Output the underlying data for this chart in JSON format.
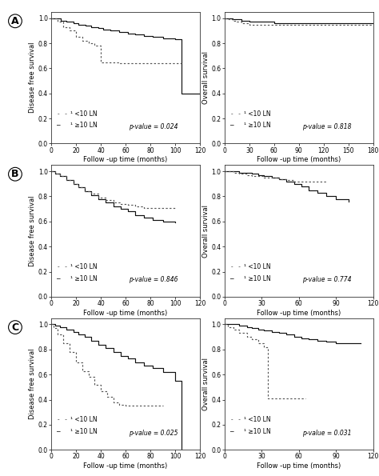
{
  "panels": [
    {
      "label": "A",
      "left": {
        "ylabel": "Disease free survival",
        "xlabel": "Follow -up time (months)",
        "xlim": [
          0,
          120
        ],
        "xticks": [
          0,
          20,
          40,
          60,
          80,
          100,
          120
        ],
        "ylim": [
          0.0,
          1.05
        ],
        "yticks": [
          0.0,
          0.2,
          0.4,
          0.6,
          0.8,
          1.0
        ],
        "pvalue": "p-value = 0.024",
        "solid_x": [
          0,
          8,
          12,
          18,
          22,
          28,
          32,
          38,
          42,
          48,
          55,
          62,
          68,
          75,
          82,
          90,
          100,
          105,
          120
        ],
        "solid_y": [
          1.0,
          0.98,
          0.97,
          0.96,
          0.95,
          0.94,
          0.93,
          0.92,
          0.91,
          0.9,
          0.89,
          0.88,
          0.87,
          0.86,
          0.85,
          0.84,
          0.83,
          0.4,
          0.4
        ],
        "dotted_x": [
          0,
          5,
          10,
          15,
          20,
          25,
          30,
          35,
          40,
          45,
          55,
          65,
          80,
          100,
          105
        ],
        "dotted_y": [
          1.0,
          0.97,
          0.93,
          0.9,
          0.85,
          0.82,
          0.8,
          0.78,
          0.65,
          0.65,
          0.64,
          0.64,
          0.64,
          0.64,
          0.64
        ]
      },
      "right": {
        "ylabel": "Overall survival",
        "xlabel": "Follow -up time (months)",
        "xlim": [
          0,
          180
        ],
        "xticks": [
          0,
          30,
          60,
          90,
          120,
          150,
          180
        ],
        "ylim": [
          0.0,
          1.05
        ],
        "yticks": [
          0.0,
          0.2,
          0.4,
          0.6,
          0.8,
          1.0
        ],
        "pvalue": "p-value = 0.818",
        "solid_x": [
          0,
          5,
          10,
          15,
          20,
          30,
          40,
          50,
          60,
          80,
          100,
          120,
          140,
          160,
          180
        ],
        "solid_y": [
          1.0,
          1.0,
          0.99,
          0.99,
          0.98,
          0.97,
          0.97,
          0.97,
          0.96,
          0.96,
          0.96,
          0.96,
          0.96,
          0.96,
          0.96
        ],
        "dotted_x": [
          0,
          5,
          10,
          15,
          20,
          25,
          30,
          35,
          40,
          50,
          60,
          80,
          100,
          120,
          140,
          160,
          180
        ],
        "dotted_y": [
          1.0,
          0.99,
          0.98,
          0.97,
          0.96,
          0.96,
          0.95,
          0.95,
          0.95,
          0.95,
          0.95,
          0.95,
          0.95,
          0.95,
          0.95,
          0.95,
          0.95
        ]
      }
    },
    {
      "label": "B",
      "left": {
        "ylabel": "Disease free survival",
        "xlabel": "Follow -up time (months)",
        "xlim": [
          0,
          120
        ],
        "xticks": [
          0,
          20,
          40,
          60,
          80,
          100,
          120
        ],
        "ylim": [
          0.0,
          1.05
        ],
        "yticks": [
          0.0,
          0.2,
          0.4,
          0.6,
          0.8,
          1.0
        ],
        "pvalue": "p-value = 0.846",
        "solid_x": [
          0,
          3,
          7,
          12,
          18,
          22,
          27,
          32,
          38,
          44,
          50,
          56,
          62,
          68,
          75,
          82,
          90,
          100
        ],
        "solid_y": [
          1.0,
          0.98,
          0.96,
          0.93,
          0.9,
          0.87,
          0.84,
          0.81,
          0.78,
          0.75,
          0.72,
          0.7,
          0.68,
          0.65,
          0.63,
          0.61,
          0.6,
          0.59
        ],
        "dotted_x": [
          0,
          3,
          7,
          12,
          18,
          22,
          27,
          32,
          38,
          44,
          50,
          56,
          62,
          68,
          75,
          82,
          90,
          100
        ],
        "dotted_y": [
          1.0,
          0.98,
          0.96,
          0.93,
          0.9,
          0.87,
          0.84,
          0.82,
          0.79,
          0.77,
          0.75,
          0.74,
          0.73,
          0.72,
          0.71,
          0.71,
          0.71,
          0.71
        ]
      },
      "right": {
        "ylabel": "Overall survival",
        "xlabel": "Follow -up time (months)",
        "xlim": [
          0,
          120
        ],
        "xticks": [
          0,
          30,
          60,
          90,
          120
        ],
        "ylim": [
          0.0,
          1.05
        ],
        "yticks": [
          0.0,
          0.2,
          0.4,
          0.6,
          0.8,
          1.0
        ],
        "pvalue": "p-value = 0.774",
        "solid_x": [
          0,
          3,
          7,
          12,
          18,
          22,
          27,
          32,
          38,
          44,
          50,
          56,
          62,
          68,
          75,
          82,
          90,
          100
        ],
        "solid_y": [
          1.0,
          1.0,
          1.0,
          0.99,
          0.99,
          0.98,
          0.97,
          0.96,
          0.95,
          0.94,
          0.92,
          0.9,
          0.88,
          0.85,
          0.83,
          0.8,
          0.78,
          0.76
        ],
        "dotted_x": [
          0,
          3,
          7,
          12,
          18,
          22,
          27,
          32,
          38,
          44,
          50,
          56,
          62,
          68,
          75,
          82
        ],
        "dotted_y": [
          1.0,
          1.0,
          0.99,
          0.98,
          0.97,
          0.96,
          0.96,
          0.95,
          0.95,
          0.94,
          0.93,
          0.92,
          0.92,
          0.92,
          0.92,
          0.92
        ]
      }
    },
    {
      "label": "C",
      "left": {
        "ylabel": "Disease free survival",
        "xlabel": "Follow -up time (months)",
        "xlim": [
          0,
          120
        ],
        "xticks": [
          0,
          20,
          40,
          60,
          80,
          100,
          120
        ],
        "ylim": [
          0.0,
          1.05
        ],
        "yticks": [
          0.0,
          0.2,
          0.4,
          0.6,
          0.8,
          1.0
        ],
        "pvalue": "p-value = 0.025",
        "solid_x": [
          0,
          3,
          7,
          12,
          18,
          22,
          27,
          32,
          38,
          44,
          50,
          56,
          62,
          68,
          75,
          82,
          90,
          100,
          105
        ],
        "solid_y": [
          1.0,
          0.99,
          0.98,
          0.96,
          0.94,
          0.92,
          0.9,
          0.87,
          0.84,
          0.81,
          0.78,
          0.75,
          0.73,
          0.7,
          0.67,
          0.65,
          0.62,
          0.55,
          0.0
        ],
        "dotted_x": [
          0,
          2,
          5,
          10,
          15,
          20,
          25,
          30,
          35,
          40,
          45,
          50,
          55,
          60,
          65,
          70,
          80,
          90
        ],
        "dotted_y": [
          1.0,
          0.97,
          0.92,
          0.85,
          0.78,
          0.7,
          0.63,
          0.58,
          0.52,
          0.47,
          0.42,
          0.38,
          0.36,
          0.35,
          0.35,
          0.35,
          0.35,
          0.35
        ]
      },
      "right": {
        "ylabel": "Overall survival",
        "xlabel": "Follow -up time (months)",
        "xlim": [
          0,
          120
        ],
        "xticks": [
          0,
          30,
          60,
          90,
          120
        ],
        "ylim": [
          0.0,
          1.05
        ],
        "yticks": [
          0.0,
          0.2,
          0.4,
          0.6,
          0.8,
          1.0
        ],
        "pvalue": "p-value = 0.031",
        "solid_x": [
          0,
          3,
          7,
          12,
          18,
          22,
          27,
          32,
          38,
          44,
          50,
          56,
          62,
          68,
          75,
          82,
          90,
          100,
          110
        ],
        "solid_y": [
          1.0,
          1.0,
          1.0,
          0.99,
          0.98,
          0.97,
          0.96,
          0.95,
          0.94,
          0.93,
          0.92,
          0.9,
          0.89,
          0.88,
          0.87,
          0.86,
          0.85,
          0.85,
          0.85
        ],
        "dotted_x": [
          0,
          3,
          7,
          12,
          18,
          22,
          27,
          32,
          35,
          40,
          45,
          55,
          65
        ],
        "dotted_y": [
          1.0,
          0.98,
          0.96,
          0.93,
          0.9,
          0.88,
          0.85,
          0.82,
          0.41,
          0.41,
          0.41,
          0.41,
          0.41
        ]
      }
    }
  ]
}
